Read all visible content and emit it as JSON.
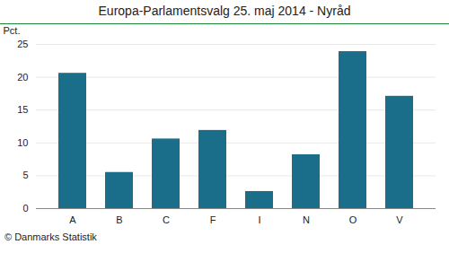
{
  "chart_data": {
    "type": "bar",
    "title": "Europa-Parlamentsvalg 25. maj 2014 - Nyråd",
    "categories": [
      "A",
      "B",
      "C",
      "F",
      "I",
      "N",
      "O",
      "V"
    ],
    "values": [
      20.6,
      5.5,
      10.6,
      11.9,
      2.6,
      8.2,
      23.9,
      17.1
    ],
    "color": "#1a6e8a",
    "ylabel": "Pct.",
    "ylim": [
      0,
      25
    ],
    "yticks": [
      0,
      5,
      10,
      15,
      20,
      25
    ],
    "grid": true,
    "footer": "© Danmarks Statistik"
  }
}
